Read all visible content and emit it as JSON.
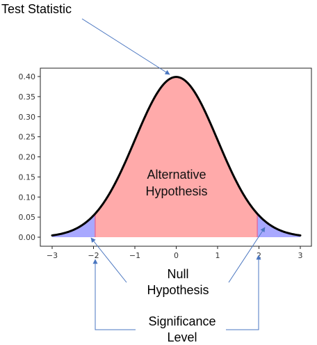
{
  "chart_data": {
    "type": "area",
    "title": "",
    "xlabel": "",
    "ylabel": "",
    "xlim": [
      -3,
      3
    ],
    "ylim": [
      0,
      0.42
    ],
    "x_ticks": [
      -3,
      -2,
      -1,
      0,
      1,
      2,
      3
    ],
    "x_tick_labels": [
      "−3",
      "−2",
      "−1",
      "0",
      "1",
      "2",
      "3"
    ],
    "y_ticks": [
      0.0,
      0.05,
      0.1,
      0.15,
      0.2,
      0.25,
      0.3,
      0.35,
      0.4
    ],
    "y_tick_labels": [
      "0.00",
      "0.05",
      "0.10",
      "0.15",
      "0.20",
      "0.25",
      "0.30",
      "0.35",
      "0.40"
    ],
    "grid": false,
    "curve": {
      "distribution": "standard normal pdf",
      "x_range": [
        -3,
        3
      ],
      "peak": {
        "x": 0,
        "y": 0.399
      },
      "color": "#000000"
    },
    "regions": [
      {
        "x_range": [
          -3,
          -1.96
        ],
        "color": "#a8a8ff"
      },
      {
        "x_range": [
          -1.96,
          1.96
        ],
        "color": "#ffaaaa"
      },
      {
        "x_range": [
          1.96,
          3
        ],
        "color": "#a8a8ff"
      }
    ],
    "boundary_lines": [
      {
        "x": -1.96,
        "color": "#e06fa0"
      },
      {
        "x": 1.96,
        "color": "#e06fa0"
      }
    ],
    "annotations": {
      "test_statistic": "Test Statistic",
      "alternative": [
        "Alternative",
        "Hypothesis"
      ],
      "null": [
        "Null",
        "Hypothesis"
      ],
      "significance": [
        "Significance",
        "Level"
      ]
    },
    "arrow_color": "#4a76c0"
  }
}
